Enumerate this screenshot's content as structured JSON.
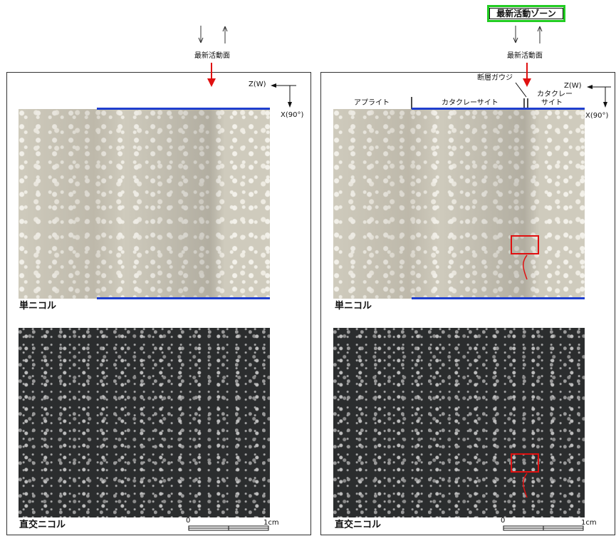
{
  "top_labels": {
    "latest_plane": "最新活動面",
    "latest_zone": "最新活動ゾーン"
  },
  "axes": {
    "z_label": "Z(W)",
    "x_label": "X(90°)"
  },
  "right_annotations": {
    "fault_gouge": "断層ガウジ",
    "aplite": "アプライト",
    "cataclasite": "カタクレーサイト",
    "cataclasite_split": [
      "カタクレー",
      "サイト"
    ]
  },
  "image_labels": {
    "plane_polarized": "単ニコル",
    "cross_polarized": "直交ニコル"
  },
  "scale": {
    "zero": "0",
    "one": "1cm"
  },
  "colors": {
    "red_arrow": "#e01010",
    "blue_line": "#1f3fcf",
    "green_box": "#22cc22"
  }
}
